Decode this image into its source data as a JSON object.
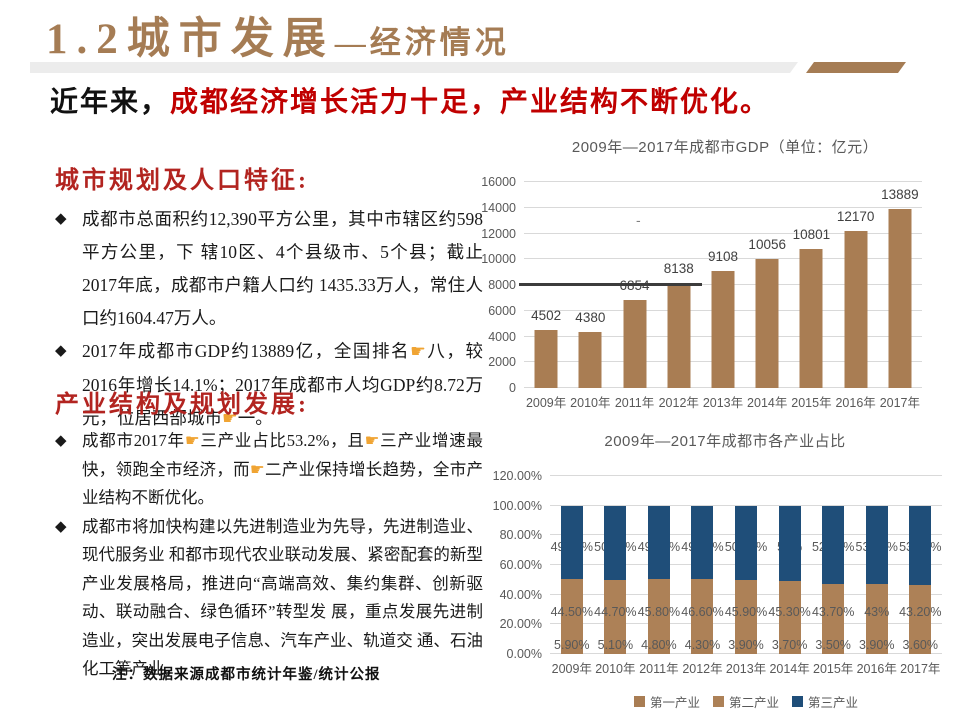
{
  "page": {
    "title_main": "1.2城市发展",
    "title_sub": "—经济情况",
    "subtitle_prefix": "近年来，",
    "subtitle_highlight": "成都经济增长活力十足，产业结构不断优化。"
  },
  "left": {
    "sections": [
      {
        "heading": "城市规划及人口特征:",
        "bullets": [
          "成都市总面积约12,390平方公里，其中市辖区约598平方公里，下 辖10区、4个县级市、5个县；截止2017年底，成都市户籍人口约 1435.33万人，常住人口约1604.47万人。",
          "2017年成都市GDP约13889亿，全国排名👉八，较2016年增长14.1%；2017年成都市人均GDP约8.72万元，位居西部城市👉一。"
        ]
      },
      {
        "heading": "产业结构及规划发展:",
        "bullets": [
          "成都市2017年👉三产业占比53.2%，且👉三产业增速最快，领跑全市经济，而👉二产业保持增长趋势，全市产业结构不断优化。",
          "成都市将加快构建以先进制造业为先导，先进制造业、现代服务业 和都市现代农业联动发展、紧密配套的新型产业发展格局，推进向“高端高效、集约集群、创新驱动、联动融合、绿色循环”转型发 展，重点发展先进制造业，突出发展电子信息、汽车产业、轨道交 通、石油化工等产业。"
        ]
      }
    ],
    "note": "注：数据来源成都市统计年鉴/统计公报"
  },
  "colors": {
    "brand_brown": "#A57C54",
    "accent_red": "#C00000",
    "heading_red": "#B22420",
    "bar_brown": "#A97D53",
    "bar_blue": "#1F4E79",
    "text_gray": "#595959",
    "finger_orange": "#F0A433"
  },
  "chart_data": [
    {
      "type": "bar",
      "title": "2009年—2017年成都市GDP（单位：亿元）",
      "categories": [
        "2009年",
        "2010年",
        "2011年",
        "2012年",
        "2013年",
        "2014年",
        "2015年",
        "2016年",
        "2017年"
      ],
      "values": [
        4502,
        4380,
        6854,
        8138,
        9108,
        10056,
        10801,
        12170,
        13889
      ],
      "labels": [
        "4502",
        "4380",
        "6854",
        "8138",
        "9108",
        "10056",
        "10801",
        "12170",
        "13889"
      ],
      "ylim": [
        0,
        16000
      ],
      "yticks": [
        "0",
        "2000",
        "4000",
        "6000",
        "8000",
        "10000",
        "12000",
        "14000",
        "16000"
      ],
      "grid": true,
      "legend_position": "none",
      "bar_color": "#A97D53",
      "reference_line": {
        "value": 8000,
        "spans_through": "2012年",
        "color": "#3C3C3C"
      },
      "stray_label": "-"
    },
    {
      "type": "bar",
      "stacked": true,
      "title": "2009年—2017年成都市各产业占比",
      "categories": [
        "2009年",
        "2010年",
        "2011年",
        "2012年",
        "2013年",
        "2014年",
        "2015年",
        "2016年",
        "2017年"
      ],
      "series": [
        {
          "name": "第一产业",
          "color": "#A97D53",
          "values": [
            5.9,
            5.1,
            4.8,
            4.3,
            3.9,
            3.7,
            3.5,
            3.9,
            3.6
          ],
          "labels": [
            "5.90%",
            "5.10%",
            "4.80%",
            "4.30%",
            "3.90%",
            "3.70%",
            "3.50%",
            "3.90%",
            "3.60%"
          ]
        },
        {
          "name": "第二产业",
          "color": "#AD8157",
          "values": [
            44.5,
            44.7,
            45.8,
            46.6,
            45.9,
            45.3,
            43.7,
            43.0,
            43.2
          ],
          "labels": [
            "44.50%",
            "44.70%",
            "45.80%",
            "46.60%",
            "45.90%",
            "45.30%",
            "43.70%",
            "43%",
            "43.20%"
          ]
        },
        {
          "name": "第三产业",
          "color": "#1F4E79",
          "values": [
            49.6,
            50.2,
            49.4,
            49.1,
            50.2,
            51.0,
            52.8,
            53.1,
            53.2
          ],
          "labels": [
            "49.60%",
            "50.20%",
            "49.40%",
            "49.10%",
            "50.20%",
            "51%",
            "52.80%",
            "53.10%",
            "53.20%"
          ]
        }
      ],
      "ylim": [
        0,
        120
      ],
      "yticks": [
        "0.00%",
        "20.00%",
        "40.00%",
        "60.00%",
        "80.00%",
        "100.00%",
        "120.00%"
      ],
      "grid": true,
      "legend_position": "bottom",
      "legend": [
        "第一产业",
        "第二产业",
        "第三产业"
      ]
    }
  ]
}
